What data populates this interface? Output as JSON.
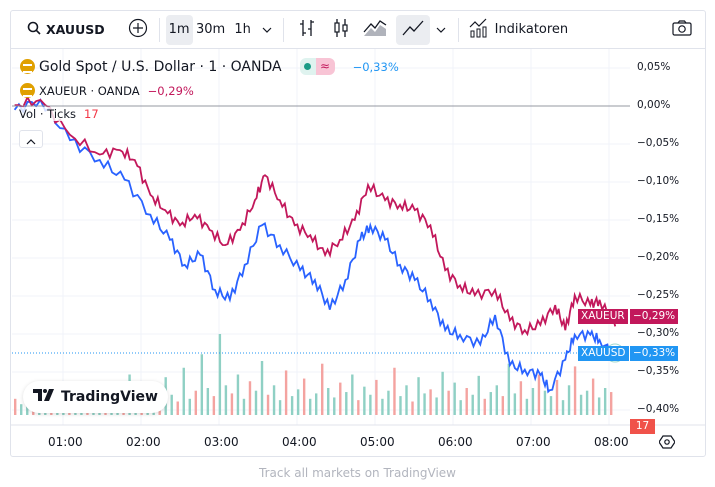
{
  "toolbar": {
    "symbol": "XAUUSD",
    "intervals": [
      "1m",
      "30m",
      "1h"
    ],
    "active_interval": "1m",
    "indicators_label": "Indikatoren"
  },
  "legend": {
    "main_title": "Gold Spot / U.S. Dollar · 1 · OANDA",
    "main_change": "−0,33%",
    "compare_title": "XAUEUR · OANDA",
    "compare_change": "−0,29%",
    "vol_label": "Vol · Ticks",
    "vol_value": "17"
  },
  "tags": {
    "xaueur_name": "XAUEUR",
    "xaueur_value": "−0,29%",
    "xauusd_name": "XAUUSD",
    "xauusd_value": "−0,33%",
    "vol_value": "17"
  },
  "logo": "TradingView",
  "footer": "Track all markets on TradingView",
  "colors": {
    "xauusd": "#2962ff",
    "xaueur": "#c2185b",
    "vol_up": "#8fd0c4",
    "vol_down": "#f4a3a0"
  },
  "chart_data": {
    "type": "line",
    "y_ticks": [
      "0,05%",
      "0,00%",
      "−0,05%",
      "−0,10%",
      "−0,15%",
      "−0,20%",
      "−0,25%",
      "−0,30%",
      "−0,35%",
      "−0,40%"
    ],
    "y_tick_values": [
      0.05,
      0,
      -0.05,
      -0.1,
      -0.15,
      -0.2,
      -0.25,
      -0.3,
      -0.35,
      -0.4
    ],
    "x_ticks": [
      "01:00",
      "02:00",
      "03:00",
      "04:00",
      "05:00",
      "06:00",
      "07:00",
      "08:00"
    ],
    "x_tick_values": [
      1,
      2,
      3,
      4,
      5,
      6,
      7,
      8
    ],
    "series": [
      {
        "name": "XAUUSD",
        "points": [
          [
            0.38,
            -0.005
          ],
          [
            0.71,
            0.008
          ],
          [
            1.09,
            -0.045
          ],
          [
            1.47,
            -0.071
          ],
          [
            1.79,
            -0.097
          ],
          [
            2.12,
            -0.143
          ],
          [
            2.37,
            -0.176
          ],
          [
            2.56,
            -0.209
          ],
          [
            2.76,
            -0.196
          ],
          [
            2.95,
            -0.242
          ],
          [
            3.14,
            -0.255
          ],
          [
            3.33,
            -0.209
          ],
          [
            3.55,
            -0.157
          ],
          [
            3.78,
            -0.183
          ],
          [
            4.04,
            -0.216
          ],
          [
            4.23,
            -0.229
          ],
          [
            4.42,
            -0.268
          ],
          [
            4.62,
            -0.229
          ],
          [
            4.81,
            -0.176
          ],
          [
            4.94,
            -0.157
          ],
          [
            5.13,
            -0.176
          ],
          [
            5.32,
            -0.209
          ],
          [
            5.51,
            -0.229
          ],
          [
            5.71,
            -0.255
          ],
          [
            5.9,
            -0.295
          ],
          [
            6.09,
            -0.301
          ],
          [
            6.35,
            -0.314
          ],
          [
            6.54,
            -0.275
          ],
          [
            6.73,
            -0.341
          ],
          [
            6.92,
            -0.347
          ],
          [
            7.12,
            -0.354
          ],
          [
            7.24,
            -0.374
          ],
          [
            7.44,
            -0.334
          ],
          [
            7.56,
            -0.301
          ],
          [
            7.76,
            -0.301
          ],
          [
            7.88,
            -0.308
          ],
          [
            8.08,
            -0.33
          ]
        ]
      },
      {
        "name": "XAUEUR",
        "points": [
          [
            0.38,
            0.001
          ],
          [
            0.71,
            0.008
          ],
          [
            1.09,
            -0.038
          ],
          [
            1.47,
            -0.064
          ],
          [
            1.73,
            -0.058
          ],
          [
            1.92,
            -0.071
          ],
          [
            2.12,
            -0.117
          ],
          [
            2.31,
            -0.137
          ],
          [
            2.5,
            -0.157
          ],
          [
            2.69,
            -0.143
          ],
          [
            2.88,
            -0.163
          ],
          [
            3.08,
            -0.183
          ],
          [
            3.27,
            -0.163
          ],
          [
            3.46,
            -0.124
          ],
          [
            3.59,
            -0.091
          ],
          [
            3.78,
            -0.124
          ],
          [
            3.97,
            -0.157
          ],
          [
            4.17,
            -0.17
          ],
          [
            4.36,
            -0.196
          ],
          [
            4.55,
            -0.176
          ],
          [
            4.74,
            -0.15
          ],
          [
            4.91,
            -0.104
          ],
          [
            5.13,
            -0.124
          ],
          [
            5.32,
            -0.13
          ],
          [
            5.51,
            -0.137
          ],
          [
            5.71,
            -0.157
          ],
          [
            5.9,
            -0.216
          ],
          [
            6.09,
            -0.236
          ],
          [
            6.28,
            -0.249
          ],
          [
            6.54,
            -0.242
          ],
          [
            6.73,
            -0.282
          ],
          [
            6.92,
            -0.295
          ],
          [
            7.12,
            -0.288
          ],
          [
            7.31,
            -0.262
          ],
          [
            7.44,
            -0.295
          ],
          [
            7.56,
            -0.249
          ],
          [
            7.76,
            -0.262
          ],
          [
            7.88,
            -0.255
          ],
          [
            8.08,
            -0.29
          ]
        ]
      }
    ],
    "volume": [
      12,
      8,
      15,
      10,
      20,
      9,
      14,
      18,
      11,
      7,
      16,
      22,
      13,
      9,
      25,
      12,
      8,
      19,
      14,
      30,
      11,
      17,
      9,
      24,
      13,
      28,
      15,
      10,
      35,
      12,
      18,
      45,
      20,
      14,
      60,
      22,
      16,
      30,
      12,
      25,
      18,
      40,
      15,
      22,
      11,
      33,
      14,
      19,
      27,
      12,
      16,
      38,
      20,
      13,
      24,
      17,
      30,
      11,
      21,
      15,
      26,
      12,
      18,
      35,
      14,
      22,
      10,
      28,
      16,
      19,
      13,
      32,
      18,
      24,
      11,
      20,
      15,
      29,
      12,
      17,
      22,
      14,
      38,
      16,
      25,
      12,
      20,
      30,
      18,
      14,
      26,
      11,
      22,
      36,
      15,
      18,
      27,
      13,
      20,
      17
    ]
  }
}
